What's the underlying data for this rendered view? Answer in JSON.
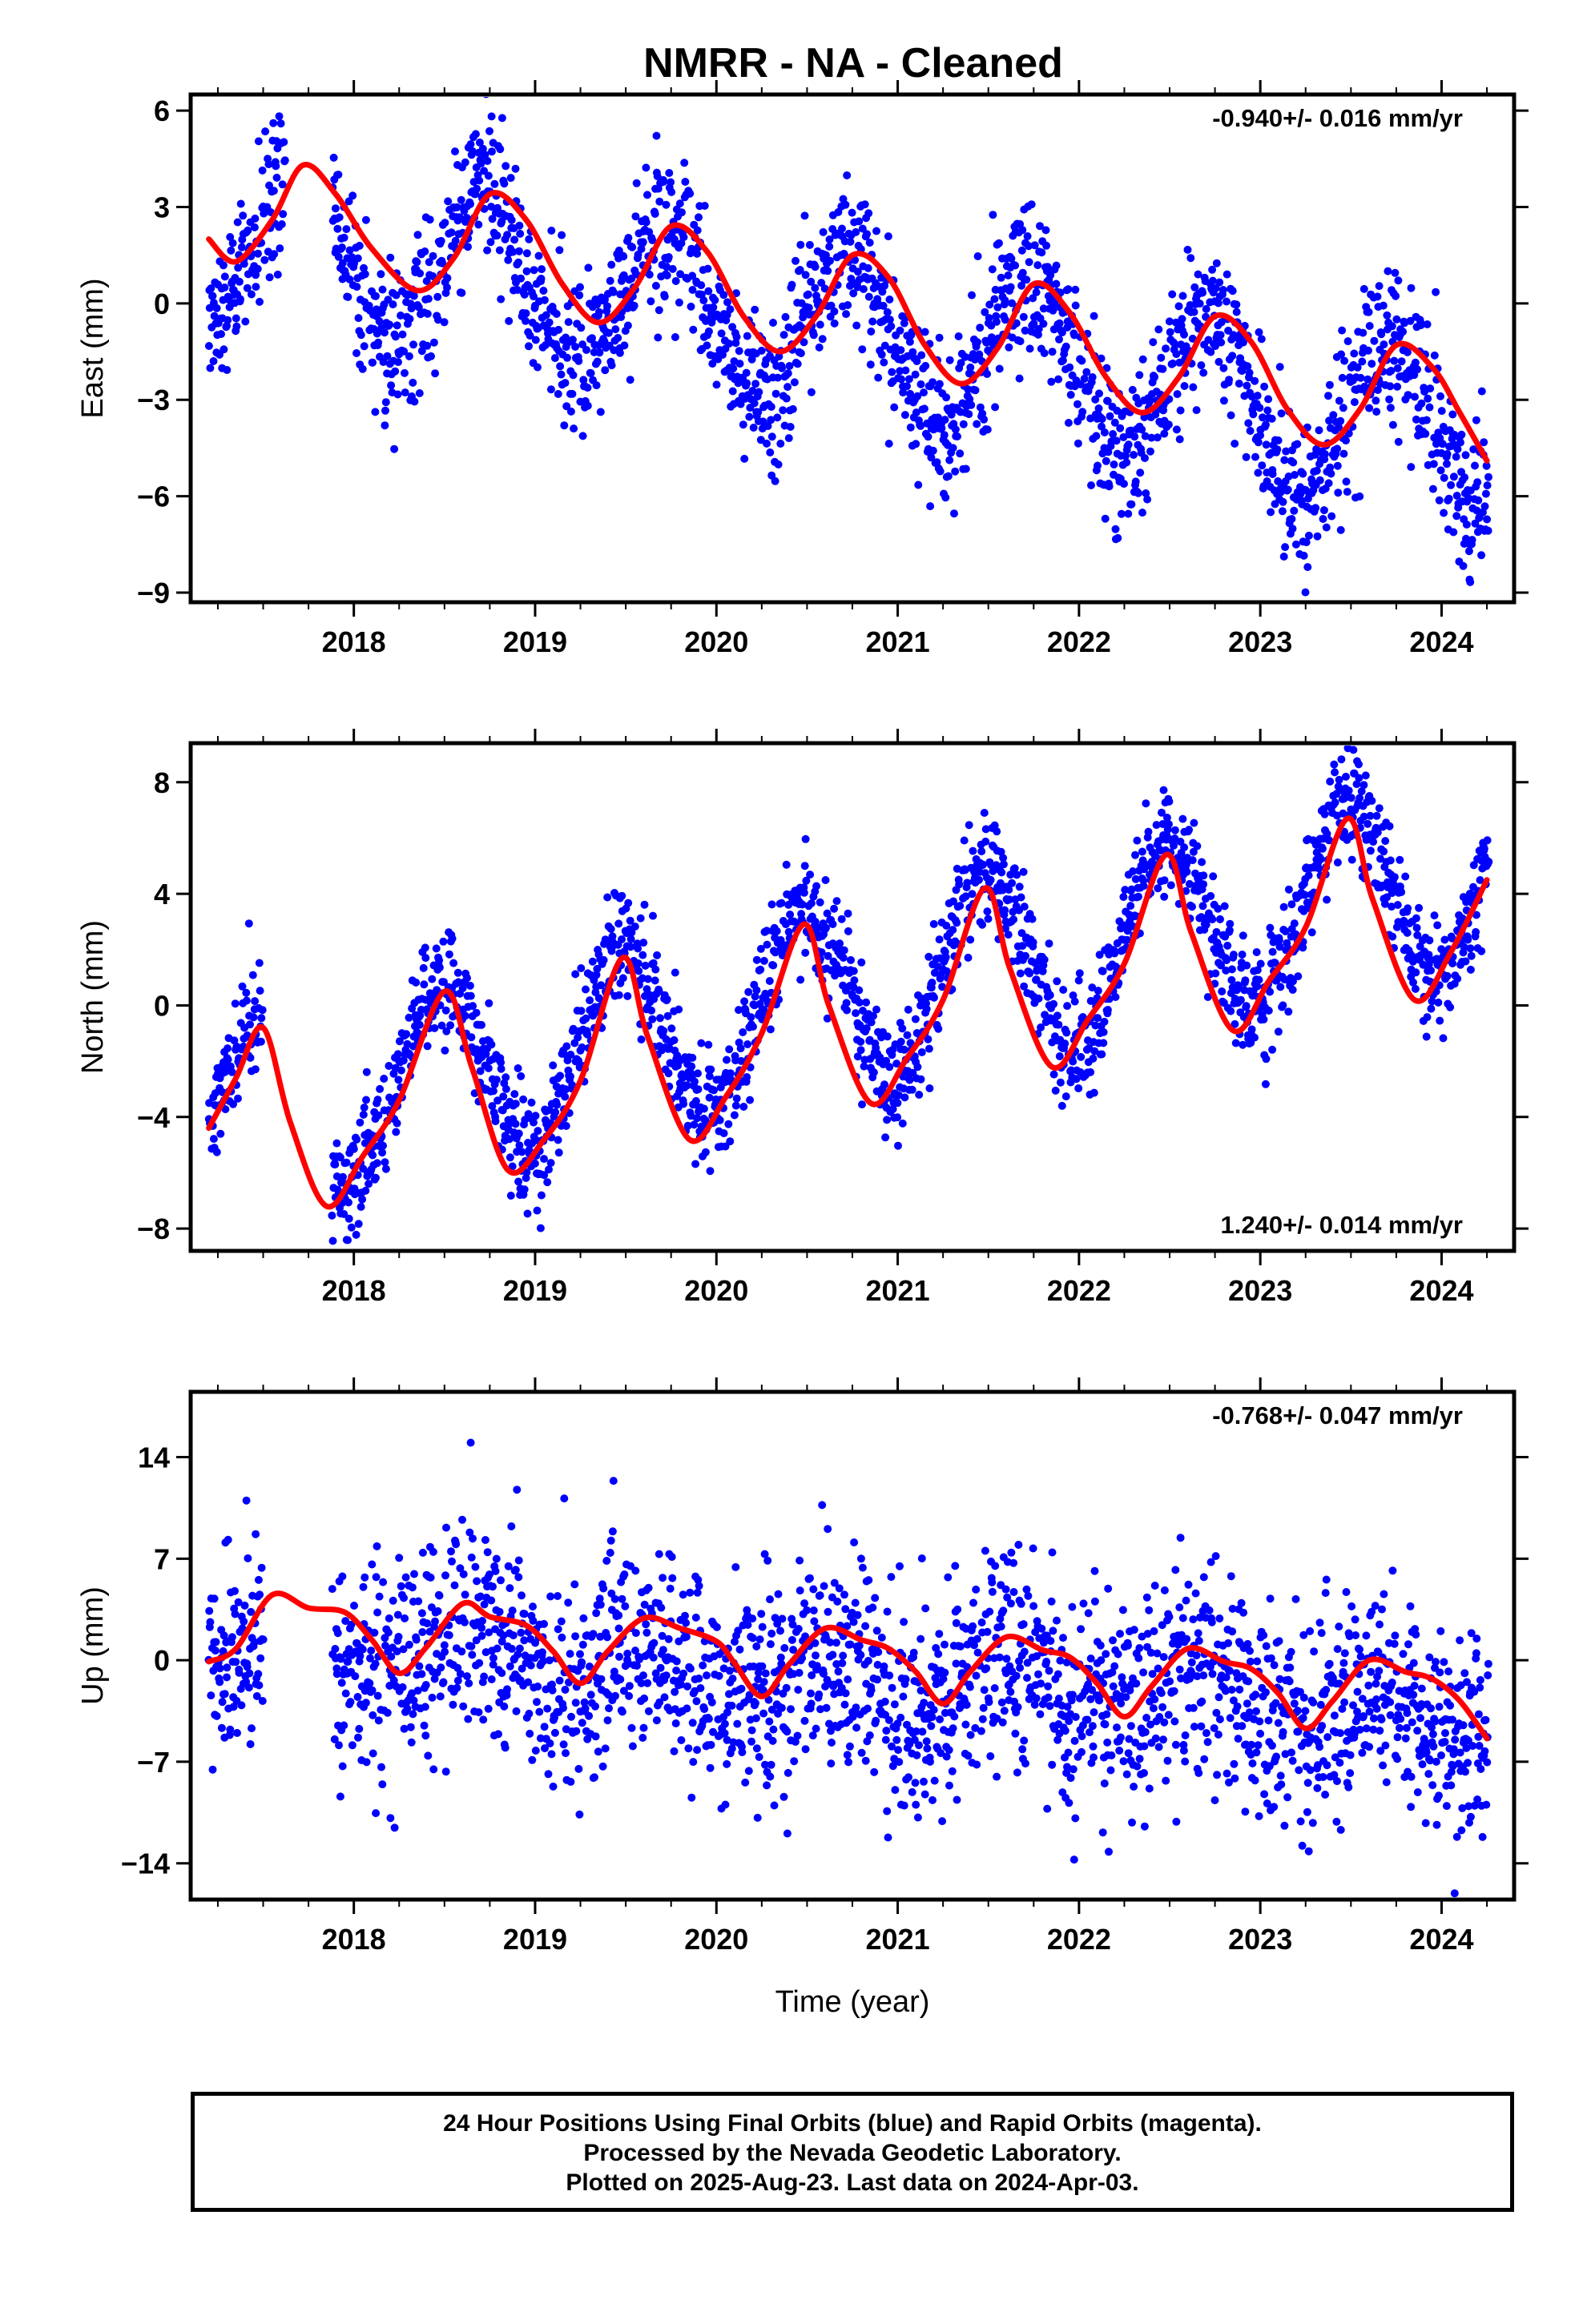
{
  "title": "NMRR  - NA - Cleaned",
  "colors": {
    "final_orbits": "#0000ff",
    "model_fit": "#ff0000",
    "axes": "#000000"
  },
  "chart_data": [
    {
      "type": "scatter",
      "ylabel": "East (mm)",
      "rate": "-0.940+/- 0.016 mm/yr",
      "rate_placement": "top-right",
      "xlim": [
        2017.1,
        2024.4
      ],
      "ylim": [
        -9.3,
        6.5
      ],
      "yticks": [
        6,
        3,
        0,
        -3,
        -6,
        -9
      ],
      "ytick_labels": [
        "6",
        "3",
        "0",
        "−3",
        "−6",
        "−9"
      ],
      "xticks": [
        2018,
        2019,
        2020,
        2021,
        2022,
        2023,
        2024
      ],
      "xtick_labels": [
        "2018",
        "2019",
        "2020",
        "2021",
        "2022",
        "2023",
        "2024"
      ],
      "data_gap": [
        2017.62,
        2017.88
      ],
      "trend": {
        "start_year": 2017.2,
        "value_at_start": 2.4,
        "rate": -0.94
      },
      "seasonal": {
        "amplitude": 2.5,
        "peak": 0.72
      },
      "scatter_sigma": 1.2,
      "fit_points": [
        [
          2017.2,
          2.0
        ],
        [
          2017.35,
          1.3
        ],
        [
          2017.55,
          2.6
        ],
        [
          2017.72,
          4.3
        ],
        [
          2017.9,
          3.4
        ],
        [
          2018.1,
          1.7
        ],
        [
          2018.35,
          0.4
        ],
        [
          2018.55,
          1.4
        ],
        [
          2018.75,
          3.4
        ],
        [
          2018.95,
          2.6
        ],
        [
          2019.15,
          0.6
        ],
        [
          2019.35,
          -0.6
        ],
        [
          2019.55,
          0.5
        ],
        [
          2019.75,
          2.4
        ],
        [
          2019.95,
          1.6
        ],
        [
          2020.15,
          -0.4
        ],
        [
          2020.35,
          -1.5
        ],
        [
          2020.55,
          -0.4
        ],
        [
          2020.75,
          1.5
        ],
        [
          2020.95,
          0.8
        ],
        [
          2021.15,
          -1.3
        ],
        [
          2021.35,
          -2.5
        ],
        [
          2021.55,
          -1.4
        ],
        [
          2021.75,
          0.6
        ],
        [
          2021.95,
          -0.3
        ],
        [
          2022.15,
          -2.3
        ],
        [
          2022.35,
          -3.4
        ],
        [
          2022.55,
          -2.3
        ],
        [
          2022.75,
          -0.4
        ],
        [
          2022.95,
          -1.2
        ],
        [
          2023.15,
          -3.3
        ],
        [
          2023.35,
          -4.4
        ],
        [
          2023.55,
          -3.3
        ],
        [
          2023.75,
          -1.3
        ],
        [
          2023.95,
          -2.0
        ],
        [
          2024.1,
          -3.4
        ],
        [
          2024.25,
          -4.9
        ]
      ]
    },
    {
      "type": "scatter",
      "ylabel": "North (mm)",
      "rate": "1.240+/- 0.014 mm/yr",
      "rate_placement": "bottom-right",
      "xlim": [
        2017.1,
        2024.4
      ],
      "ylim": [
        -8.8,
        9.4
      ],
      "yticks": [
        8,
        4,
        0,
        -4,
        -8
      ],
      "ytick_labels": [
        "8",
        "4",
        "0",
        "−4",
        "−8"
      ],
      "xticks": [
        2018,
        2019,
        2020,
        2021,
        2022,
        2023,
        2024
      ],
      "xtick_labels": [
        "2018",
        "2019",
        "2020",
        "2021",
        "2022",
        "2023",
        "2024"
      ],
      "data_gap": [
        2017.5,
        2017.88
      ],
      "trend": {
        "start_year": 2017.2,
        "value_at_start": -4.0,
        "rate": 1.24
      },
      "seasonal": {
        "amplitude": 3.3,
        "peak": 0.48
      },
      "scatter_sigma": 1.0,
      "fit_points": [
        [
          2017.2,
          -4.4
        ],
        [
          2017.35,
          -2.6
        ],
        [
          2017.5,
          -0.8
        ],
        [
          2017.65,
          -4.2
        ],
        [
          2017.85,
          -7.2
        ],
        [
          2018.05,
          -5.4
        ],
        [
          2018.25,
          -3.4
        ],
        [
          2018.5,
          0.5
        ],
        [
          2018.65,
          -2.2
        ],
        [
          2018.85,
          -5.9
        ],
        [
          2019.05,
          -4.8
        ],
        [
          2019.25,
          -2.7
        ],
        [
          2019.48,
          1.7
        ],
        [
          2019.62,
          -1.1
        ],
        [
          2019.85,
          -4.8
        ],
        [
          2020.05,
          -3.3
        ],
        [
          2020.25,
          -1.0
        ],
        [
          2020.48,
          2.9
        ],
        [
          2020.62,
          0.0
        ],
        [
          2020.85,
          -3.5
        ],
        [
          2021.05,
          -1.9
        ],
        [
          2021.25,
          0.2
        ],
        [
          2021.48,
          4.2
        ],
        [
          2021.62,
          1.3
        ],
        [
          2021.85,
          -2.2
        ],
        [
          2022.05,
          -0.5
        ],
        [
          2022.25,
          1.5
        ],
        [
          2022.48,
          5.4
        ],
        [
          2022.62,
          2.6
        ],
        [
          2022.85,
          -0.9
        ],
        [
          2023.05,
          0.9
        ],
        [
          2023.25,
          2.8
        ],
        [
          2023.48,
          6.7
        ],
        [
          2023.62,
          3.8
        ],
        [
          2023.85,
          0.2
        ],
        [
          2024.05,
          1.9
        ],
        [
          2024.25,
          4.5
        ]
      ]
    },
    {
      "type": "scatter",
      "ylabel": "Up (mm)",
      "xlabel": "Time (year)",
      "rate": "-0.768+/- 0.047 mm/yr",
      "rate_placement": "top-right",
      "xlim": [
        2017.1,
        2024.4
      ],
      "ylim": [
        -16.5,
        18.5
      ],
      "yticks": [
        14,
        7,
        0,
        -7,
        -14
      ],
      "ytick_labels": [
        "14",
        "7",
        "0",
        "−7",
        "−14"
      ],
      "xticks": [
        2018,
        2019,
        2020,
        2021,
        2022,
        2023,
        2024
      ],
      "xtick_labels": [
        "2018",
        "2019",
        "2020",
        "2021",
        "2022",
        "2023",
        "2024"
      ],
      "data_gap": [
        2017.5,
        2017.88
      ],
      "trend": {
        "start_year": 2017.2,
        "value_at_start": 1.5,
        "rate": -0.768
      },
      "seasonal": {
        "amplitude": 1.8,
        "peak": 0.62
      },
      "scatter_sigma": 3.6,
      "fit_points": [
        [
          2017.2,
          -0.1
        ],
        [
          2017.35,
          0.8
        ],
        [
          2017.55,
          4.5
        ],
        [
          2017.75,
          3.6
        ],
        [
          2017.95,
          3.3
        ],
        [
          2018.1,
          1.4
        ],
        [
          2018.25,
          -0.9
        ],
        [
          2018.4,
          0.9
        ],
        [
          2018.6,
          3.9
        ],
        [
          2018.75,
          3.0
        ],
        [
          2018.95,
          2.4
        ],
        [
          2019.1,
          0.6
        ],
        [
          2019.25,
          -1.6
        ],
        [
          2019.4,
          0.6
        ],
        [
          2019.6,
          2.9
        ],
        [
          2019.8,
          2.2
        ],
        [
          2020.0,
          1.3
        ],
        [
          2020.1,
          -0.2
        ],
        [
          2020.25,
          -2.5
        ],
        [
          2020.4,
          -0.3
        ],
        [
          2020.6,
          2.2
        ],
        [
          2020.8,
          1.4
        ],
        [
          2020.95,
          0.8
        ],
        [
          2021.1,
          -0.8
        ],
        [
          2021.25,
          -3.0
        ],
        [
          2021.4,
          -0.8
        ],
        [
          2021.6,
          1.6
        ],
        [
          2021.8,
          0.7
        ],
        [
          2021.95,
          0.2
        ],
        [
          2022.1,
          -1.6
        ],
        [
          2022.25,
          -3.9
        ],
        [
          2022.4,
          -1.8
        ],
        [
          2022.6,
          0.8
        ],
        [
          2022.8,
          -0.1
        ],
        [
          2022.95,
          -0.6
        ],
        [
          2023.1,
          -2.3
        ],
        [
          2023.25,
          -4.7
        ],
        [
          2023.4,
          -2.8
        ],
        [
          2023.6,
          0.0
        ],
        [
          2023.8,
          -0.8
        ],
        [
          2023.95,
          -1.3
        ],
        [
          2024.1,
          -2.8
        ],
        [
          2024.25,
          -5.4
        ]
      ]
    }
  ],
  "footer": {
    "line1": "24 Hour Positions Using Final Orbits (blue) and Rapid Orbits (magenta).",
    "line2": "Processed by the Nevada Geodetic Laboratory.",
    "line3": "Plotted on 2025-Aug-23. Last data on 2024-Apr-03."
  }
}
